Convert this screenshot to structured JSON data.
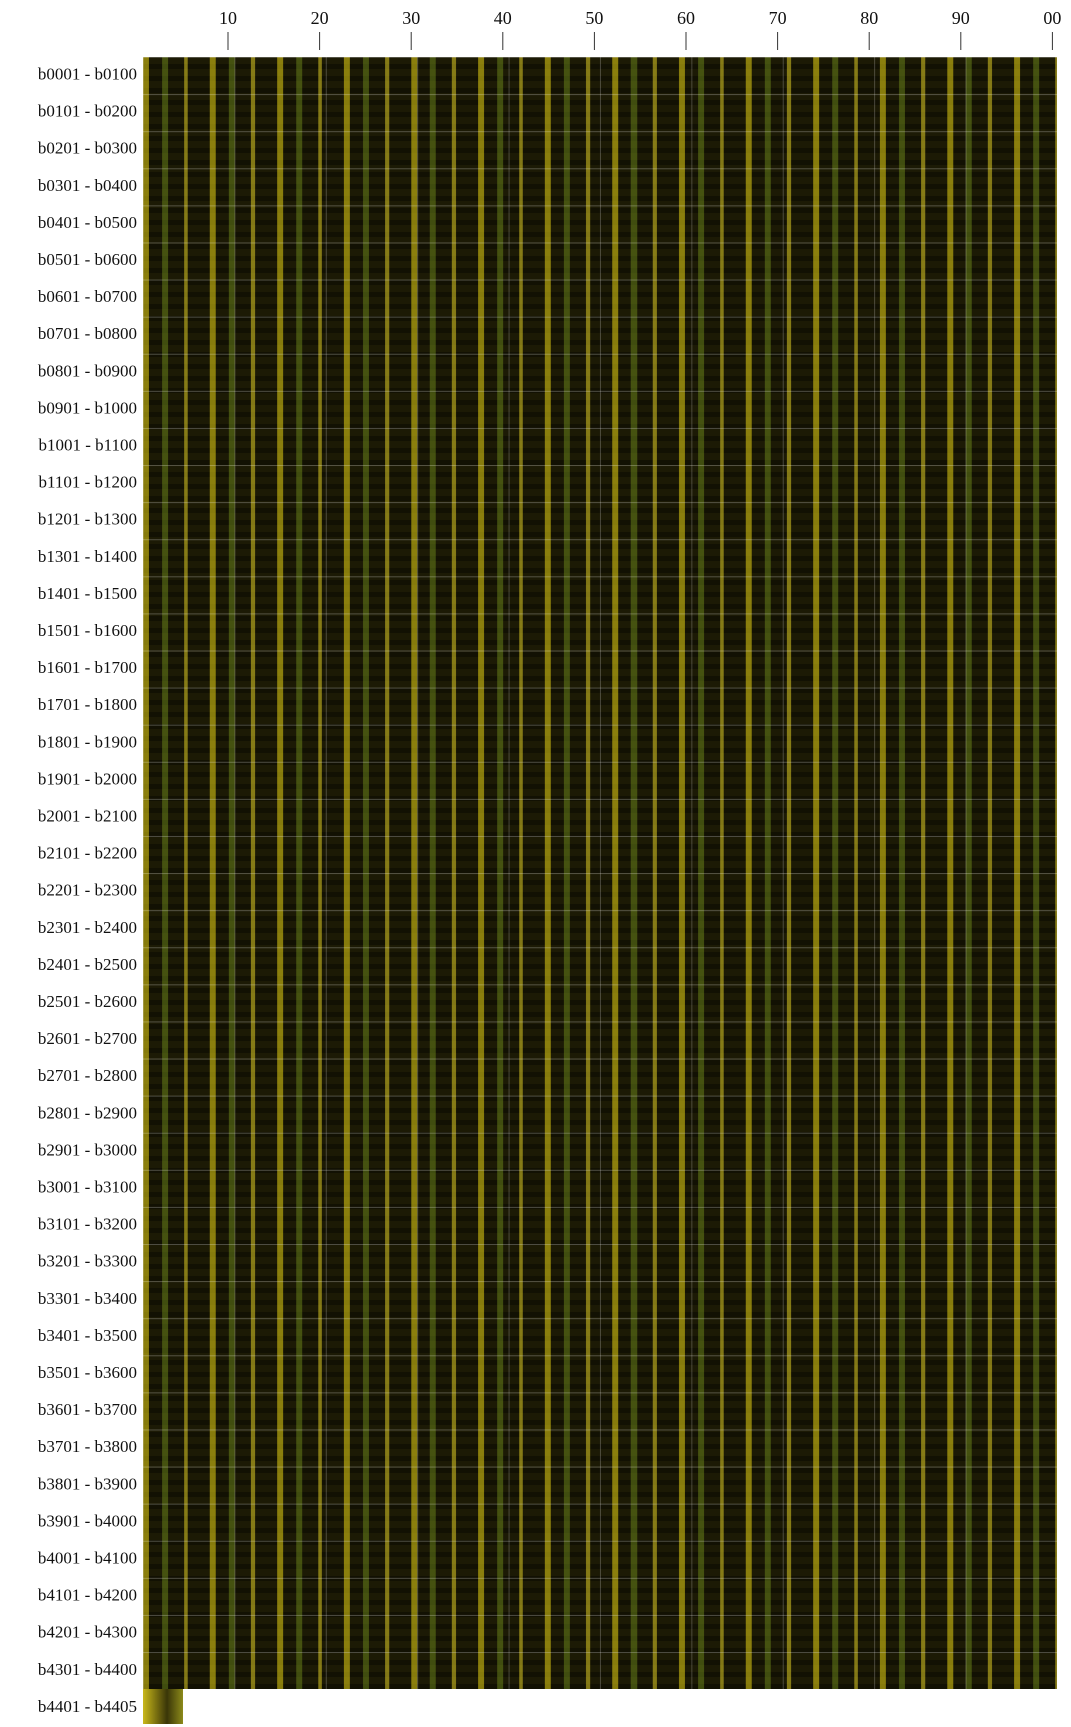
{
  "axis": {
    "ticks": [
      "10",
      "20",
      "30",
      "40",
      "50",
      "60",
      "70",
      "80",
      "90",
      "00"
    ]
  },
  "rows": [
    "b0001 - b0100",
    "b0101 - b0200",
    "b0201 - b0300",
    "b0301 - b0400",
    "b0401 - b0500",
    "b0501 - b0600",
    "b0601 - b0700",
    "b0701 - b0800",
    "b0801 - b0900",
    "b0901 - b1000",
    "b1001 - b1100",
    "b1101 - b1200",
    "b1201 - b1300",
    "b1301 - b1400",
    "b1401 - b1500",
    "b1501 - b1600",
    "b1601 - b1700",
    "b1701 - b1800",
    "b1801 - b1900",
    "b1901 - b2000",
    "b2001 - b2100",
    "b2101 - b2200",
    "b2201 - b2300",
    "b2301 - b2400",
    "b2401 - b2500",
    "b2501 - b2600",
    "b2601 - b2700",
    "b2701 - b2800",
    "b2801 - b2900",
    "b2901 - b3000",
    "b3001 - b3100",
    "b3101 - b3200",
    "b3201 - b3300",
    "b3301 - b3400",
    "b3401 - b3500",
    "b3501 - b3600",
    "b3601 - b3700",
    "b3701 - b3800",
    "b3801 - b3900",
    "b3901 - b4000",
    "b4001 - b4100",
    "b4101 - b4200",
    "b4201 - b4300",
    "b4301 - b4400",
    "b4401 - b4405"
  ]
}
